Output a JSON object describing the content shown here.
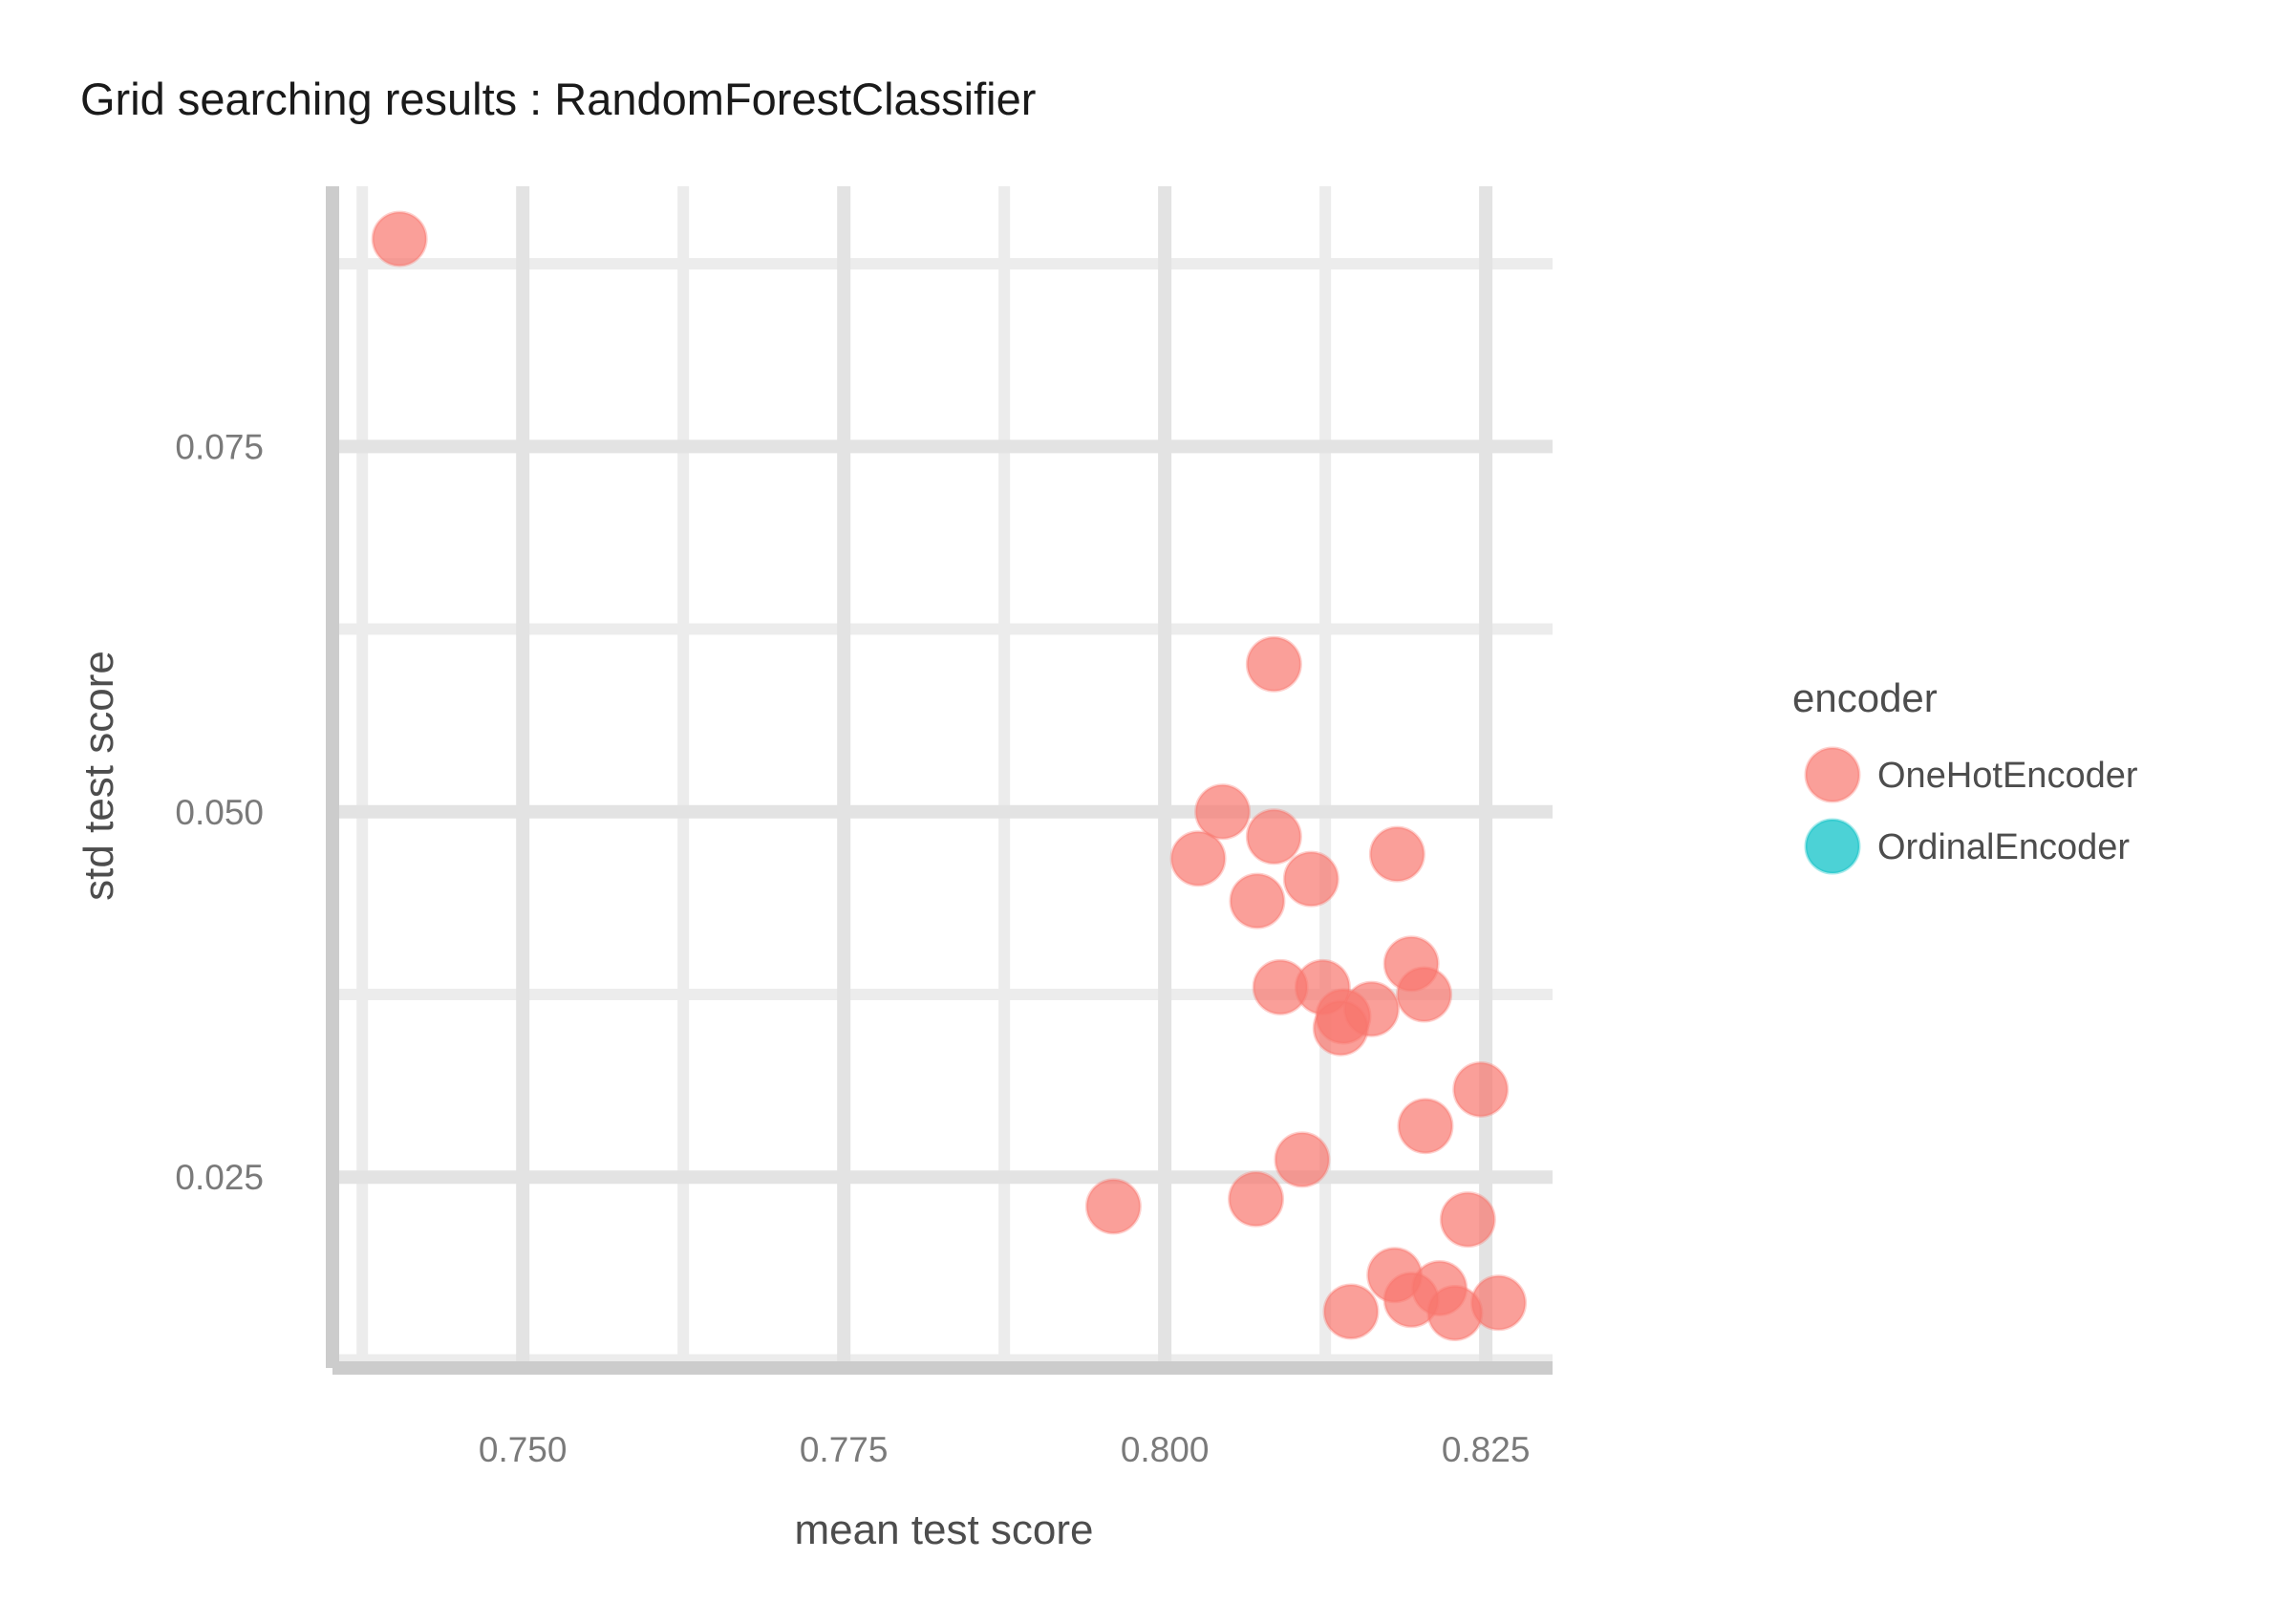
{
  "chart_data": {
    "type": "scatter",
    "title": "Grid searching results :  RandomForestClassifier",
    "xlabel": "mean test score",
    "ylabel": "std test score",
    "xlim": [
      0.7357,
      0.8302
    ],
    "ylim": [
      0.0124,
      0.0928
    ],
    "x_ticks": [
      0.75,
      0.775,
      0.8,
      0.825
    ],
    "x_tick_labels": [
      "0.750",
      "0.775",
      "0.800",
      "0.825"
    ],
    "y_ticks": [
      0.025,
      0.05,
      0.075
    ],
    "y_tick_labels": [
      "0.025",
      "0.050",
      "0.075"
    ],
    "grid": true,
    "legend": {
      "title": "encoder",
      "position": "right",
      "entries": [
        {
          "label": "OneHotEncoder",
          "color": "#F8766D"
        },
        {
          "label": "OrdinalEncoder",
          "color": "#00BFC4"
        }
      ]
    },
    "series": [
      {
        "name": "OneHotEncoder",
        "color": "#F8766D",
        "points": [
          {
            "x": 0.7404,
            "y": 0.0892
          },
          {
            "x": 0.8085,
            "y": 0.0601
          },
          {
            "x": 0.8045,
            "y": 0.05
          },
          {
            "x": 0.8085,
            "y": 0.0483
          },
          {
            "x": 0.8026,
            "y": 0.0468
          },
          {
            "x": 0.8181,
            "y": 0.0471
          },
          {
            "x": 0.8114,
            "y": 0.0454
          },
          {
            "x": 0.8072,
            "y": 0.0439
          },
          {
            "x": 0.8192,
            "y": 0.0396
          },
          {
            "x": 0.8202,
            "y": 0.0375
          },
          {
            "x": 0.809,
            "y": 0.038
          },
          {
            "x": 0.8123,
            "y": 0.038
          },
          {
            "x": 0.8161,
            "y": 0.0365
          },
          {
            "x": 0.8139,
            "y": 0.036
          },
          {
            "x": 0.8137,
            "y": 0.0352
          },
          {
            "x": 0.8246,
            "y": 0.031
          },
          {
            "x": 0.8203,
            "y": 0.0285
          },
          {
            "x": 0.8107,
            "y": 0.0262
          },
          {
            "x": 0.796,
            "y": 0.023
          },
          {
            "x": 0.8071,
            "y": 0.0235
          },
          {
            "x": 0.8236,
            "y": 0.0221
          },
          {
            "x": 0.8179,
            "y": 0.0183
          },
          {
            "x": 0.8214,
            "y": 0.0174
          },
          {
            "x": 0.8192,
            "y": 0.0166
          },
          {
            "x": 0.826,
            "y": 0.0164
          },
          {
            "x": 0.8145,
            "y": 0.0158
          },
          {
            "x": 0.8226,
            "y": 0.0157
          }
        ]
      }
    ]
  }
}
